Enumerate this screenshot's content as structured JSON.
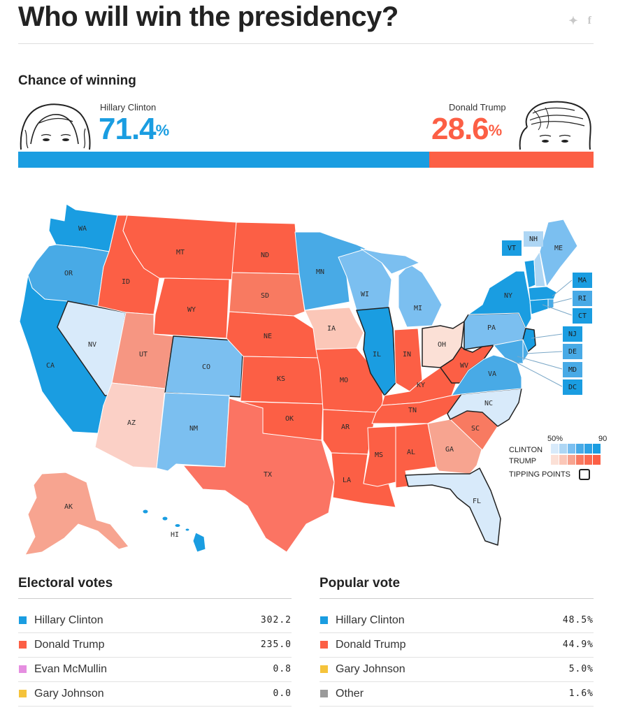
{
  "header": {
    "title": "Who will win the presidency?"
  },
  "chance": {
    "heading": "Chance of winning",
    "clinton": {
      "name": "Hillary Clinton",
      "value": "71.4",
      "unit": "%",
      "fraction": 0.714,
      "color": "#1a9de1"
    },
    "trump": {
      "name": "Donald Trump",
      "value": "28.6",
      "unit": "%",
      "fraction": 0.286,
      "color": "#fc5f45"
    }
  },
  "map": {
    "states": {
      "WA": "WA",
      "OR": "OR",
      "CA": "CA",
      "NV": "NV",
      "ID": "ID",
      "MT": "MT",
      "WY": "WY",
      "UT": "UT",
      "AZ": "AZ",
      "CO": "CO",
      "NM": "NM",
      "ND": "ND",
      "SD": "SD",
      "NE": "NE",
      "KS": "KS",
      "OK": "OK",
      "TX": "TX",
      "MN": "MN",
      "IA": "IA",
      "MO": "MO",
      "AR": "AR",
      "LA": "LA",
      "WI": "WI",
      "IL": "IL",
      "MS": "MS",
      "MI": "MI",
      "IN": "IN",
      "KY": "KY",
      "TN": "TN",
      "AL": "AL",
      "OH": "OH",
      "WV": "WV",
      "GA": "GA",
      "FL": "FL",
      "SC": "SC",
      "NC": "NC",
      "VA": "VA",
      "PA": "PA",
      "NY": "NY",
      "ME": "ME",
      "AK": "AK",
      "HI": "HI"
    },
    "small_states": [
      "VT",
      "NH",
      "MA",
      "RI",
      "CT",
      "NJ",
      "DE",
      "MD",
      "DC"
    ],
    "legend": {
      "low": "50%",
      "high": "90",
      "clinton": "CLINTON",
      "trump": "TRUMP",
      "tipping": "TIPPING POINTS"
    }
  },
  "electoral": {
    "heading": "Electoral votes",
    "rows": [
      {
        "name": "Hillary Clinton",
        "value": "302.2",
        "color": "#1a9de1"
      },
      {
        "name": "Donald Trump",
        "value": "235.0",
        "color": "#fc5f45"
      },
      {
        "name": "Evan McMullin",
        "value": "0.8",
        "color": "#e58ee0"
      },
      {
        "name": "Gary Johnson",
        "value": "0.0",
        "color": "#f5c33b"
      }
    ]
  },
  "popular": {
    "heading": "Popular vote",
    "rows": [
      {
        "name": "Hillary Clinton",
        "value": "48.5%",
        "color": "#1a9de1"
      },
      {
        "name": "Donald Trump",
        "value": "44.9%",
        "color": "#fc5f45"
      },
      {
        "name": "Gary Johnson",
        "value": "5.0%",
        "color": "#f5c33b"
      },
      {
        "name": "Other",
        "value": "1.6%",
        "color": "#9a9a9a"
      }
    ]
  }
}
